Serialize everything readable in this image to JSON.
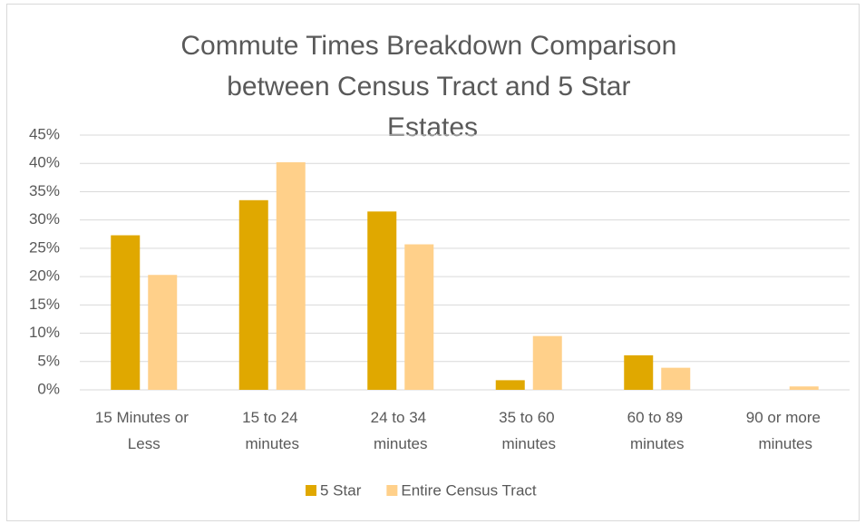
{
  "chart_data": {
    "type": "bar",
    "title": "Commute Times Breakdown Comparison between Census Tract and 5 Star Estates",
    "categories": [
      "15 Minutes or Less",
      "15 to 24 minutes",
      "24 to 34 minutes",
      "35 to 60 minutes",
      "60 to 89 minutes",
      "90 or more minutes"
    ],
    "series": [
      {
        "name": "5 Star",
        "color": "#E0A800",
        "values": [
          27.3,
          33.5,
          31.5,
          1.7,
          6.1,
          0
        ]
      },
      {
        "name": "Entire Census Tract",
        "color": "#FFD08A",
        "values": [
          20.3,
          40.2,
          25.7,
          9.5,
          3.9,
          0.6
        ]
      }
    ],
    "ylim": [
      0,
      45
    ],
    "yticks": [
      {
        "value": 0,
        "label": "0%"
      },
      {
        "value": 5,
        "label": "5%"
      },
      {
        "value": 10,
        "label": "10%"
      },
      {
        "value": 15,
        "label": "15%"
      },
      {
        "value": 20,
        "label": "20%"
      },
      {
        "value": 25,
        "label": "25%"
      },
      {
        "value": 30,
        "label": "30%"
      },
      {
        "value": 35,
        "label": "35%"
      },
      {
        "value": 40,
        "label": "40%"
      },
      {
        "value": 45,
        "label": "45%"
      }
    ],
    "grid": true,
    "legend": "bottom"
  }
}
